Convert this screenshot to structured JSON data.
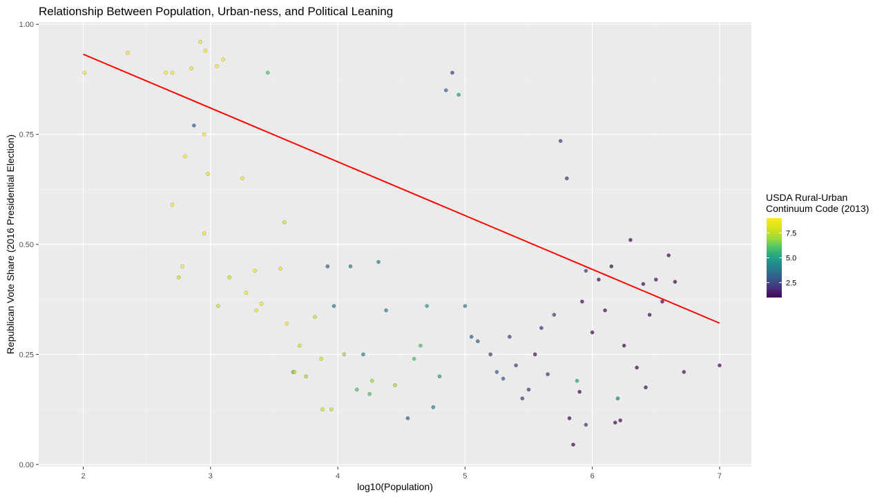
{
  "chart_data": {
    "type": "scatter",
    "title": "Relationship Between Population, Urban-ness, and Political Leaning",
    "xlabel": "log10(Population)",
    "ylabel": "Republican Vote Share (2016 Presidential Election)",
    "xlim": [
      1.65,
      7.25
    ],
    "ylim": [
      -0.005,
      1.005
    ],
    "x_ticks": [
      2,
      3,
      4,
      5,
      6,
      7
    ],
    "y_ticks": [
      0.0,
      0.25,
      0.5,
      0.75,
      1.0
    ],
    "y_tick_labels": [
      "0.00",
      "0.25",
      "0.50",
      "0.75",
      "1.00"
    ],
    "grid": true,
    "legend": {
      "title_line1": "USDA Rural-Urban",
      "title_line2": "Continuum Code (2013)",
      "position": "right",
      "range": [
        1,
        9
      ],
      "ticks": [
        2.5,
        5.0,
        7.5
      ],
      "tick_labels": [
        "2.5",
        "5.0",
        "7.5"
      ],
      "colormap": "viridis"
    },
    "trend_line": {
      "x": [
        2.0,
        7.0
      ],
      "y": [
        0.932,
        0.321
      ],
      "color": "#ff0000"
    },
    "point_color": "viridis (by RUCC code)",
    "series": [
      {
        "name": "USDA Rural-Urban Continuum Code (2013)",
        "points": [
          [
            2.01,
            0.89,
            9
          ],
          [
            2.35,
            0.935,
            9
          ],
          [
            2.65,
            0.89,
            9
          ],
          [
            2.7,
            0.89,
            9
          ],
          [
            2.75,
            0.425,
            8
          ],
          [
            2.78,
            0.45,
            9
          ],
          [
            2.8,
            0.7,
            9
          ],
          [
            2.85,
            0.9,
            9
          ],
          [
            2.87,
            0.77,
            3
          ],
          [
            2.92,
            0.96,
            9
          ],
          [
            2.95,
            0.75,
            9
          ],
          [
            2.96,
            0.94,
            9
          ],
          [
            2.98,
            0.66,
            9
          ],
          [
            2.95,
            0.525,
            9
          ],
          [
            2.7,
            0.59,
            9
          ],
          [
            3.05,
            0.905,
            9
          ],
          [
            3.06,
            0.36,
            8
          ],
          [
            3.1,
            0.92,
            9
          ],
          [
            3.15,
            0.425,
            8
          ],
          [
            3.25,
            0.65,
            9
          ],
          [
            3.28,
            0.39,
            9
          ],
          [
            3.35,
            0.44,
            9
          ],
          [
            3.36,
            0.35,
            9
          ],
          [
            3.4,
            0.365,
            9
          ],
          [
            3.45,
            0.89,
            6
          ],
          [
            3.55,
            0.445,
            9
          ],
          [
            3.58,
            0.55,
            8
          ],
          [
            3.6,
            0.32,
            9
          ],
          [
            3.65,
            0.21,
            6
          ],
          [
            3.66,
            0.21,
            8
          ],
          [
            3.7,
            0.27,
            8
          ],
          [
            3.75,
            0.2,
            7
          ],
          [
            3.82,
            0.335,
            8
          ],
          [
            3.87,
            0.24,
            8
          ],
          [
            3.88,
            0.125,
            8
          ],
          [
            3.92,
            0.45,
            3
          ],
          [
            3.95,
            0.125,
            8
          ],
          [
            3.97,
            0.36,
            4
          ],
          [
            4.05,
            0.25,
            7
          ],
          [
            4.1,
            0.45,
            4
          ],
          [
            4.15,
            0.17,
            6
          ],
          [
            4.2,
            0.25,
            4
          ],
          [
            4.25,
            0.16,
            6
          ],
          [
            4.27,
            0.19,
            7
          ],
          [
            4.32,
            0.46,
            4
          ],
          [
            4.38,
            0.35,
            4
          ],
          [
            4.45,
            0.18,
            7
          ],
          [
            4.55,
            0.105,
            3
          ],
          [
            4.6,
            0.24,
            6
          ],
          [
            4.65,
            0.27,
            6
          ],
          [
            4.7,
            0.36,
            5
          ],
          [
            4.75,
            0.13,
            4
          ],
          [
            4.8,
            0.2,
            5
          ],
          [
            4.85,
            0.85,
            3
          ],
          [
            4.9,
            0.89,
            2
          ],
          [
            4.95,
            0.84,
            5
          ],
          [
            5.0,
            0.36,
            4
          ],
          [
            5.05,
            0.29,
            3
          ],
          [
            5.1,
            0.28,
            3
          ],
          [
            5.2,
            0.25,
            2
          ],
          [
            5.25,
            0.21,
            3
          ],
          [
            5.3,
            0.195,
            3
          ],
          [
            5.35,
            0.29,
            2
          ],
          [
            5.4,
            0.225,
            2
          ],
          [
            5.45,
            0.15,
            2
          ],
          [
            5.5,
            0.17,
            2
          ],
          [
            5.55,
            0.25,
            1
          ],
          [
            5.6,
            0.31,
            2
          ],
          [
            5.65,
            0.205,
            2
          ],
          [
            5.7,
            0.34,
            2
          ],
          [
            5.75,
            0.735,
            2
          ],
          [
            5.8,
            0.65,
            2
          ],
          [
            5.82,
            0.105,
            1
          ],
          [
            5.85,
            0.045,
            1
          ],
          [
            5.88,
            0.19,
            5
          ],
          [
            5.9,
            0.165,
            1
          ],
          [
            5.92,
            0.37,
            1
          ],
          [
            5.95,
            0.09,
            2
          ],
          [
            5.95,
            0.44,
            2
          ],
          [
            6.0,
            0.3,
            1
          ],
          [
            6.05,
            0.42,
            1
          ],
          [
            6.1,
            0.35,
            1
          ],
          [
            6.15,
            0.45,
            1
          ],
          [
            6.18,
            0.095,
            1
          ],
          [
            6.2,
            0.15,
            4
          ],
          [
            6.22,
            0.1,
            1
          ],
          [
            6.25,
            0.27,
            1
          ],
          [
            6.3,
            0.51,
            1
          ],
          [
            6.35,
            0.22,
            1
          ],
          [
            6.4,
            0.41,
            1
          ],
          [
            6.42,
            0.175,
            1
          ],
          [
            6.45,
            0.34,
            1
          ],
          [
            6.5,
            0.42,
            1
          ],
          [
            6.55,
            0.37,
            1
          ],
          [
            6.6,
            0.475,
            1
          ],
          [
            6.65,
            0.415,
            1
          ],
          [
            6.72,
            0.21,
            1
          ],
          [
            7.0,
            0.225,
            1
          ]
        ]
      }
    ]
  }
}
